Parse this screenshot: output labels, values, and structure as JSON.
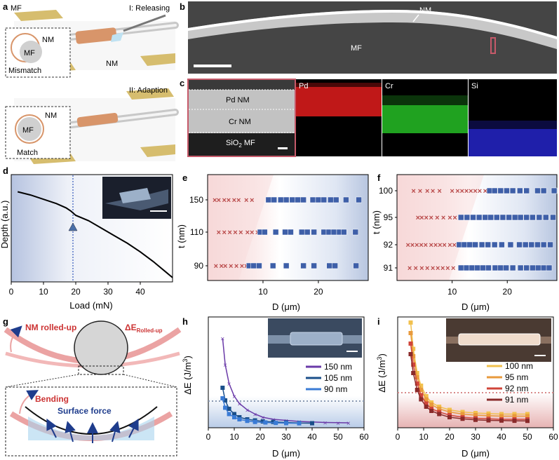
{
  "panels": {
    "a": {
      "letter": "a",
      "step1": "I: Releasing",
      "step2": "II: Adaption",
      "mf_top": "MF",
      "nm_label": "NM",
      "inset1_mf": "MF",
      "inset1_nm": "NM",
      "mismatch": "Mismatch",
      "inset2_mf": "MF",
      "inset2_nm": "NM",
      "match": "Match"
    },
    "b": {
      "letter": "b",
      "nm": "NM",
      "mf": "MF"
    },
    "c": {
      "letter": "c",
      "pd_nm": "Pd NM",
      "cr_nm": "Cr NM",
      "sio2_mf": "SiO",
      "sio2_sub": "2",
      "sio2_tail": " MF",
      "pd": "Pd",
      "cr": "Cr",
      "si": "Si"
    },
    "d": {
      "letter": "d",
      "ylabel": "Depth (a.u.)",
      "xlabel": "Load (mN)",
      "xticks": [
        "0",
        "10",
        "20",
        "30",
        "40"
      ]
    },
    "e": {
      "letter": "e",
      "ylabel": "t (nm)",
      "xlabel": "D (μm)",
      "yticks": [
        "150",
        "110",
        "90"
      ],
      "xticks": [
        "10",
        "20"
      ]
    },
    "f": {
      "letter": "f",
      "ylabel": "t (nm)",
      "xlabel": "D (μm)",
      "yticks": [
        "100",
        "95",
        "92",
        "91"
      ],
      "xticks": [
        "10",
        "20"
      ]
    },
    "g": {
      "letter": "g",
      "rolled": "NM rolled-up",
      "de": "ΔE",
      "de_sub": "Rolled-up",
      "bending": "Bending",
      "surface": "Surface force"
    },
    "h": {
      "letter": "h",
      "ylabel": "ΔE (J/m",
      "ylabel_sup": "3",
      "ylabel_end": ")",
      "xlabel": "D (μm)",
      "xticks": [
        "0",
        "10",
        "20",
        "30",
        "40",
        "50",
        "60"
      ],
      "legend": [
        "150 nm",
        "105 nm",
        "90 nm"
      ],
      "legend_colors": [
        "#6a3aa8",
        "#1a4f8a",
        "#3a7bd5"
      ]
    },
    "i": {
      "letter": "i",
      "ylabel": "ΔE (J/m",
      "ylabel_sup": "3",
      "ylabel_end": ")",
      "xlabel": "D (μm)",
      "xticks": [
        "0",
        "10",
        "20",
        "30",
        "40",
        "50",
        "60"
      ],
      "legend": [
        "100 nm",
        "95 nm",
        "92 nm",
        "91 nm"
      ],
      "legend_colors": [
        "#f2c14e",
        "#e89a3c",
        "#d0453a",
        "#8a2a2a"
      ]
    }
  },
  "chart_data": [
    {
      "panel": "d",
      "type": "line",
      "xlabel": "Load (mN)",
      "ylabel": "Depth (a.u.)",
      "xlim": [
        0,
        50
      ],
      "series": [
        {
          "x": [
            2,
            6,
            10,
            14,
            17,
            18.5,
            20,
            24,
            28,
            32,
            36,
            40,
            44,
            48,
            50
          ],
          "y": [
            0.84,
            0.81,
            0.77,
            0.73,
            0.69,
            0.66,
            0.62,
            0.57,
            0.5,
            0.43,
            0.36,
            0.28,
            0.19,
            0.09,
            0.04
          ]
        }
      ],
      "marker_x": 18
    },
    {
      "panel": "e",
      "type": "scatter",
      "xlabel": "D (μm)",
      "ylabel": "t (nm)",
      "xlim": [
        0,
        29
      ],
      "rows": [
        {
          "t": "150",
          "fail": [
            1.3,
            2.0,
            3.0,
            3.8,
            4.8,
            5.6,
            7.0,
            8.0
          ],
          "ok": [
            11.0,
            12.0,
            13.2,
            14.2,
            15.3,
            16.3,
            17.3,
            19.0,
            20.0,
            21.0,
            22.2,
            23.2,
            25.0,
            27.3
          ]
        },
        {
          "t": "110",
          "fail": [
            2.0,
            3.0,
            4.0,
            5.0,
            6.0,
            7.2,
            8.0,
            9.0
          ],
          "ok": [
            9.5,
            10.3,
            12.3,
            14.0,
            15.0,
            17.0,
            18.0,
            19.2,
            21.0,
            21.9,
            22.8,
            23.8,
            24.6,
            26.7
          ]
        },
        {
          "t": "90",
          "fail": [
            1.5,
            2.5,
            3.2,
            4.2,
            5.2,
            6.2,
            7.0
          ],
          "ok": [
            7.5,
            8.3,
            9.3,
            11.8,
            14.2,
            17.3,
            19.2,
            22.0,
            23.0,
            26.8
          ]
        }
      ]
    },
    {
      "panel": "f",
      "type": "scatter",
      "xlabel": "D (μm)",
      "ylabel": "t (nm)",
      "xlim": [
        0,
        29
      ],
      "rows": [
        {
          "t": "100",
          "fail": [
            3.0,
            4.2,
            5.5,
            6.5,
            7.7,
            10.0,
            11.0,
            11.8,
            12.6,
            13.4,
            14.2,
            15.0,
            16.0
          ],
          "ok": [
            16.8,
            17.7,
            18.8,
            19.9,
            21.0,
            22.3,
            23.5,
            25.5,
            26.6,
            28.5
          ]
        },
        {
          "t": "95",
          "fail": [
            3.8,
            4.5,
            5.3,
            6.2,
            7.3,
            8.4,
            9.6,
            10.5
          ],
          "ok": [
            11.6,
            12.7,
            13.8,
            14.9,
            16.0,
            17.0,
            18.1,
            19.2,
            20.3,
            21.4,
            22.4,
            23.5,
            24.6,
            25.8,
            27.0,
            28.3
          ]
        },
        {
          "t": "92",
          "fail": [
            2.0,
            2.8,
            3.6,
            4.4,
            5.2,
            6.2,
            7.0,
            7.8,
            8.6,
            9.6,
            10.4
          ],
          "ok": [
            11.3,
            12.2,
            13.2,
            14.2,
            15.4,
            16.5,
            17.7,
            19.0,
            20.6,
            22.2,
            23.3,
            24.4,
            25.5,
            26.6,
            27.8
          ]
        },
        {
          "t": "91",
          "fail": [
            2.3,
            3.4,
            4.5,
            5.5,
            6.5,
            7.4,
            8.3,
            9.2,
            10.2
          ],
          "ok": [
            11.6,
            12.6,
            13.6,
            14.6,
            15.6,
            16.6,
            17.8,
            18.8,
            19.8,
            21.0,
            22.4,
            23.5,
            24.6,
            25.6,
            26.6,
            27.6
          ]
        }
      ]
    },
    {
      "panel": "h",
      "type": "scatter",
      "xlabel": "D (μm)",
      "ylabel": "ΔE (J/m3)",
      "xlim": [
        0,
        60
      ],
      "series": [
        {
          "name": "150 nm",
          "x": [
            5.5,
            6.5,
            8,
            10,
            12,
            15,
            18,
            21,
            25,
            30,
            35,
            40,
            45,
            50,
            54
          ],
          "y": [
            0.85,
            0.6,
            0.42,
            0.3,
            0.23,
            0.17,
            0.13,
            0.1,
            0.08,
            0.07,
            0.06,
            0.055,
            0.05,
            0.048,
            0.047
          ]
        },
        {
          "name": "105 nm",
          "x": [
            5.5,
            6.5,
            8,
            10,
            12,
            15,
            18,
            21,
            25,
            30,
            35,
            40
          ],
          "y": [
            0.38,
            0.26,
            0.18,
            0.13,
            0.1,
            0.08,
            0.07,
            0.06,
            0.055,
            0.05,
            0.045,
            0.043
          ]
        },
        {
          "name": "90 nm",
          "x": [
            5.5,
            6.5,
            8,
            10,
            12,
            15,
            18,
            22,
            26,
            30,
            35
          ],
          "y": [
            0.28,
            0.19,
            0.13,
            0.1,
            0.08,
            0.065,
            0.055,
            0.05,
            0.046,
            0.044,
            0.042
          ]
        }
      ],
      "threshold": 0.24
    },
    {
      "panel": "i",
      "type": "scatter",
      "xlabel": "D (μm)",
      "ylabel": "ΔE (J/m3)",
      "xlim": [
        0,
        60
      ],
      "series": [
        {
          "name": "100 nm",
          "x": [
            5,
            6,
            7.5,
            9,
            11,
            13,
            16,
            20,
            25,
            30,
            35,
            40,
            45,
            50
          ],
          "y": [
            1.0,
            0.75,
            0.52,
            0.4,
            0.3,
            0.24,
            0.2,
            0.17,
            0.15,
            0.14,
            0.135,
            0.13,
            0.13,
            0.13
          ]
        },
        {
          "name": "95 nm",
          "x": [
            5,
            6,
            7.5,
            9,
            11,
            13,
            16,
            20,
            25,
            30,
            35,
            40,
            45,
            50
          ],
          "y": [
            0.9,
            0.68,
            0.48,
            0.36,
            0.27,
            0.22,
            0.18,
            0.15,
            0.13,
            0.12,
            0.115,
            0.11,
            0.11,
            0.11
          ]
        },
        {
          "name": "92 nm",
          "x": [
            5,
            6,
            7.5,
            9,
            11,
            13,
            16,
            20,
            25,
            30,
            35,
            40,
            45,
            50
          ],
          "y": [
            0.8,
            0.6,
            0.42,
            0.31,
            0.23,
            0.18,
            0.15,
            0.12,
            0.1,
            0.09,
            0.085,
            0.08,
            0.08,
            0.08
          ]
        },
        {
          "name": "91 nm",
          "x": [
            5,
            6,
            7.5,
            9,
            11,
            13,
            16,
            20,
            25,
            30,
            35,
            40,
            45,
            50
          ],
          "y": [
            0.7,
            0.52,
            0.36,
            0.27,
            0.2,
            0.16,
            0.13,
            0.1,
            0.085,
            0.075,
            0.07,
            0.068,
            0.066,
            0.065
          ]
        }
      ],
      "threshold": 0.31
    }
  ]
}
